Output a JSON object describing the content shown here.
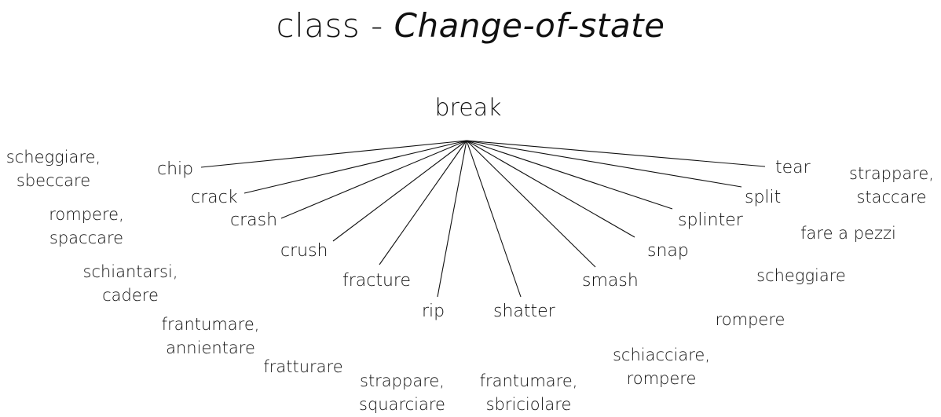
{
  "title": {
    "prefix": "class - ",
    "class_name": "Change-of-state"
  },
  "root": "break",
  "verbs": [
    {
      "en": "chip",
      "it": [
        "scheggiare,",
        "sbeccare"
      ]
    },
    {
      "en": "crack",
      "it": [
        "rompere,",
        "spaccare"
      ]
    },
    {
      "en": "crash",
      "it": [
        "schiantarsi,",
        "cadere"
      ]
    },
    {
      "en": "crush",
      "it": [
        "frantumare,",
        "annientare"
      ]
    },
    {
      "en": "fracture",
      "it": [
        "fratturare"
      ]
    },
    {
      "en": "rip",
      "it": [
        "strappare,",
        "squarciare"
      ]
    },
    {
      "en": "shatter",
      "it": [
        "frantumare,",
        "sbriciolare"
      ]
    },
    {
      "en": "smash",
      "it": [
        "schiacciare,",
        "rompere"
      ]
    },
    {
      "en": "snap",
      "it": [
        "rompere"
      ]
    },
    {
      "en": "splinter",
      "it": [
        "scheggiare"
      ]
    },
    {
      "en": "split",
      "it": [
        "fare a pezzi"
      ]
    },
    {
      "en": "tear",
      "it": [
        "strappare,",
        "staccare"
      ]
    }
  ]
}
